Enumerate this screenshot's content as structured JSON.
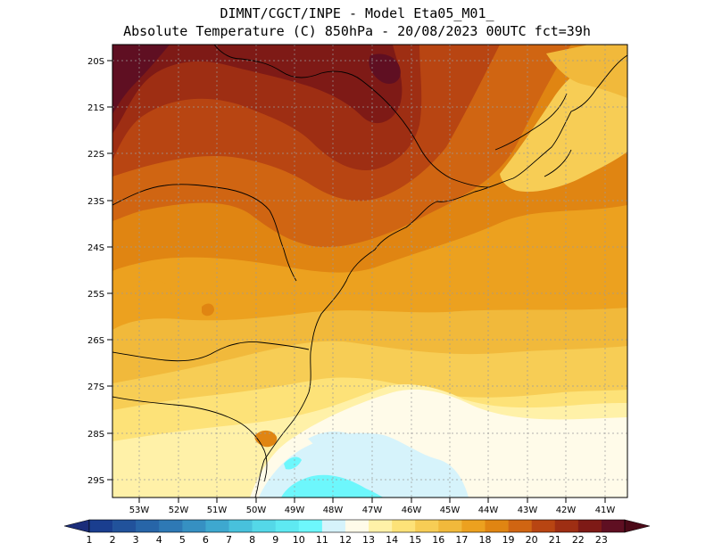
{
  "header": {
    "line1": "DIMNT/CGCT/INPE -  Model Eta05_M01_",
    "line2": "Absolute Temperature (C) 850hPa -  20/08/2023 00UTC fct=39h"
  },
  "axes": {
    "lat_labels": [
      "20S",
      "21S",
      "22S",
      "23S",
      "24S",
      "25S",
      "26S",
      "27S",
      "28S",
      "29S"
    ],
    "lon_labels": [
      "53W",
      "52W",
      "51W",
      "50W",
      "49W",
      "48W",
      "47W",
      "46W",
      "45W",
      "44W",
      "43W",
      "42W",
      "41W"
    ]
  },
  "colorbar": {
    "labels": [
      "1",
      "2",
      "3",
      "4",
      "5",
      "6",
      "7",
      "8",
      "9",
      "10",
      "11",
      "12",
      "13",
      "14",
      "15",
      "16",
      "17",
      "18",
      "19",
      "20",
      "21",
      "22",
      "23"
    ],
    "colors": [
      "#1a3e8f",
      "#21529b",
      "#2765a8",
      "#2e79b5",
      "#3690c2",
      "#3ea8cf",
      "#48c1dc",
      "#54d8e8",
      "#5ee9f2",
      "#6df7fc",
      "#d6f3fb",
      "#fffbe9",
      "#fff1a8",
      "#fde278",
      "#f7cd55",
      "#f1b93b",
      "#eca11f",
      "#e08512",
      "#d06512",
      "#b84512",
      "#9e2e13",
      "#7e1a16",
      "#5f0f22"
    ],
    "low_arrow_color": "#1b2d7a",
    "high_arrow_color": "#4c0a18"
  }
}
